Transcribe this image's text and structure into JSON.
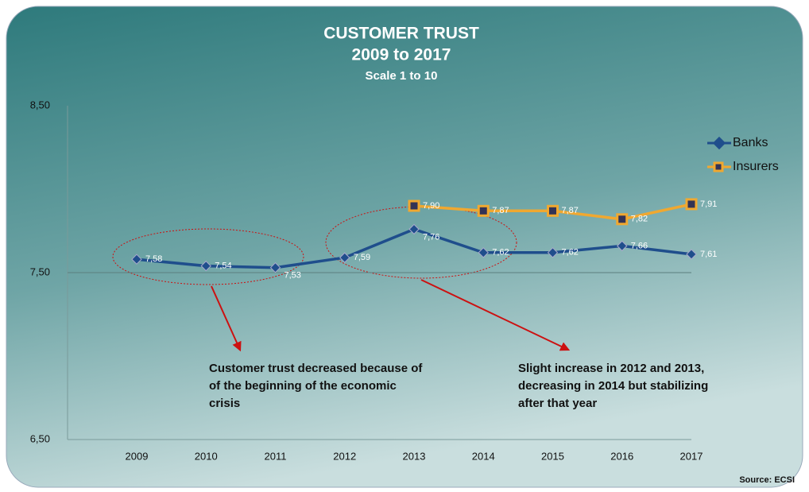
{
  "chart_data": {
    "type": "line",
    "title": [
      "CUSTOMER TRUST",
      "2009 to 2017"
    ],
    "subtitle": "Scale 1 to 10",
    "source": "Source: ECSI",
    "categories": [
      "2009",
      "2010",
      "2011",
      "2012",
      "2013",
      "2014",
      "2015",
      "2016",
      "2017"
    ],
    "series": [
      {
        "name": "Banks",
        "color": "#1f4e8c",
        "values": [
          7.58,
          7.54,
          7.53,
          7.59,
          7.76,
          7.62,
          7.62,
          7.66,
          7.61
        ],
        "value_labels": [
          "7,58",
          "7,54",
          "7,53",
          "7,59",
          "7,76",
          "7,62",
          "7,62",
          "7,66",
          "7,61"
        ]
      },
      {
        "name": "Insurers",
        "color": "#f0a830",
        "values": [
          null,
          null,
          null,
          null,
          7.9,
          7.87,
          7.87,
          7.82,
          7.91
        ],
        "value_labels": [
          null,
          null,
          null,
          null,
          "7,90",
          "7,87",
          "7,87",
          "7,82",
          "7,91"
        ]
      }
    ],
    "ylim": [
      6.5,
      8.5
    ],
    "yticks": [
      {
        "value": 6.5,
        "label": "6,50"
      },
      {
        "value": 7.5,
        "label": "7,50"
      },
      {
        "value": 8.5,
        "label": "8,50"
      }
    ],
    "grid": true,
    "legend": "right",
    "annotations": [
      {
        "text": [
          "Customer trust decreased because of",
          "of the beginning of the economic",
          "crisis"
        ]
      },
      {
        "text": [
          "Slight increase in 2012 and 2013,",
          "decreasing in 2014 but stabilizing",
          "after that year"
        ]
      }
    ]
  }
}
